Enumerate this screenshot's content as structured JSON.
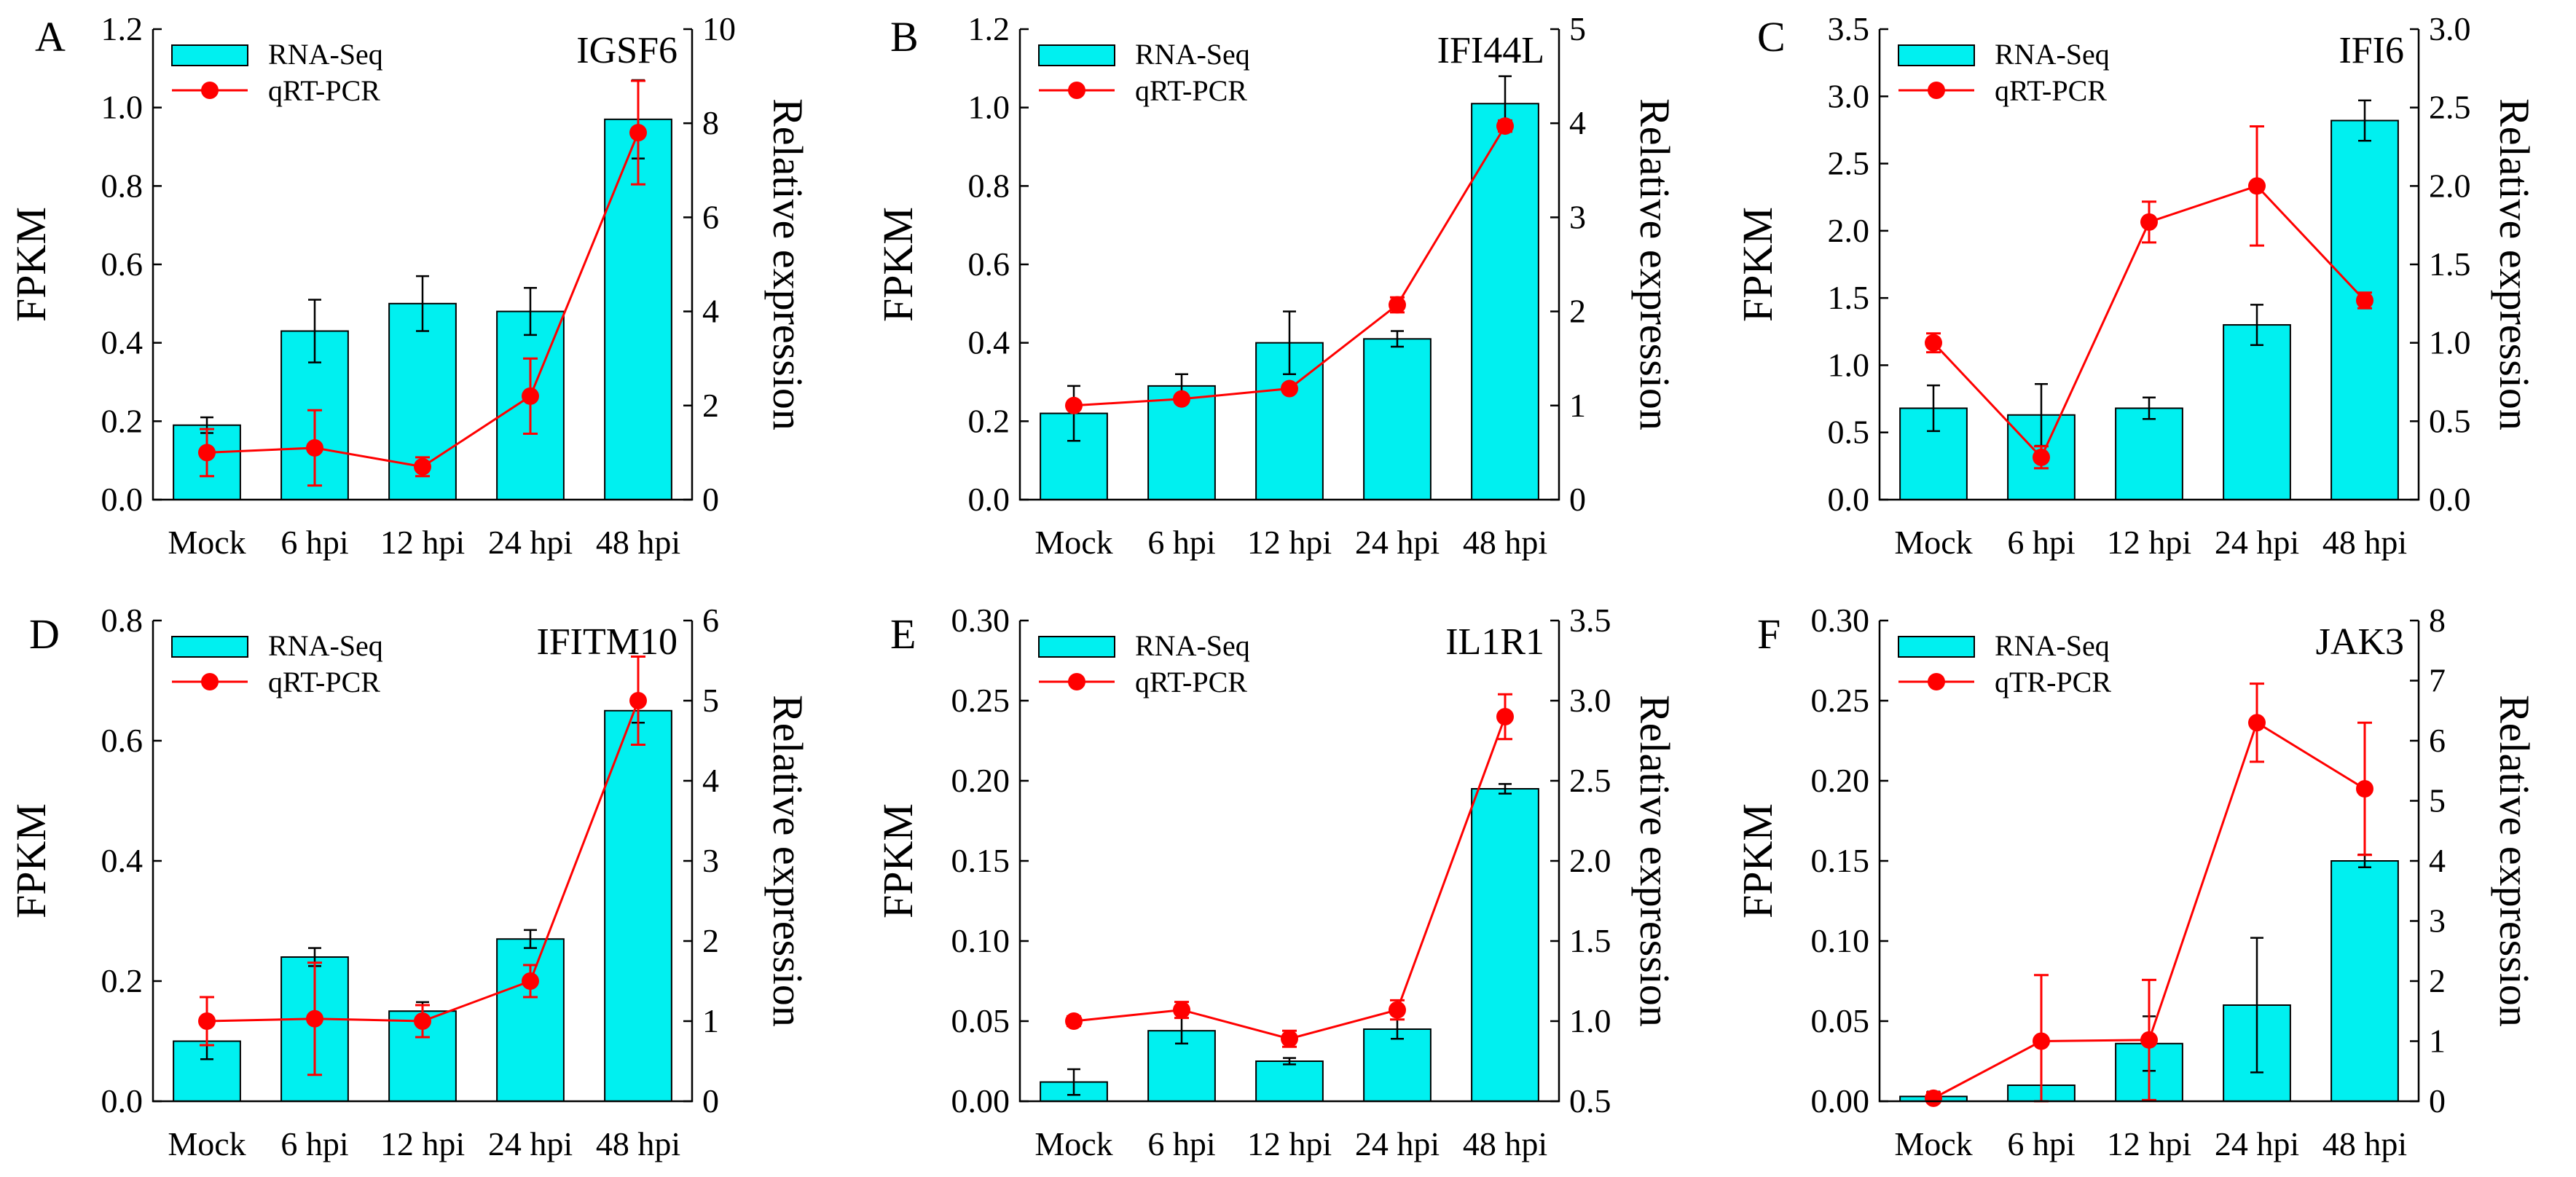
{
  "figure": {
    "panels": [
      {
        "letter": "A",
        "gene": "IGSF6"
      },
      {
        "letter": "B",
        "gene": "IFI44L"
      },
      {
        "letter": "C",
        "gene": "IFI6"
      },
      {
        "letter": "D",
        "gene": "IFITM10"
      },
      {
        "letter": "E",
        "gene": "IL1R1"
      },
      {
        "letter": "F",
        "gene": "JAK3"
      }
    ]
  },
  "chart_data": [
    {
      "type": "bar",
      "panel": "A",
      "title": "IGSF6",
      "categories": [
        "Mock",
        "6 hpi",
        "12 hpi",
        "24 hpi",
        "48 hpi"
      ],
      "xlabel": "",
      "ylabel": "FPKM",
      "y2label": "Relative expression",
      "ylim": [
        0,
        1.2
      ],
      "yticks": [
        0,
        0.2,
        0.4,
        0.6,
        0.8,
        1.0,
        1.2
      ],
      "yticklabels": [
        "0.0",
        "0.2",
        "0.4",
        "0.6",
        "0.8",
        "1.0",
        "1.2"
      ],
      "y2lim": [
        0,
        10
      ],
      "y2ticks": [
        0,
        2,
        4,
        6,
        8,
        10
      ],
      "y2ticklabels": [
        "0",
        "2",
        "4",
        "6",
        "8",
        "10"
      ],
      "legend": "top-left",
      "series": [
        {
          "name": "RNA-Seq",
          "type": "bar",
          "axis": "left",
          "color": "#00f0f0",
          "values": [
            0.19,
            0.43,
            0.5,
            0.48,
            0.97
          ],
          "errors": [
            0.02,
            0.08,
            0.07,
            0.06,
            0.1
          ]
        },
        {
          "name": "qRT-PCR",
          "type": "line",
          "axis": "right",
          "color": "#ff0000",
          "values": [
            1.0,
            1.1,
            0.7,
            2.2,
            7.8
          ],
          "errors": [
            0.5,
            0.8,
            0.2,
            0.8,
            1.1
          ]
        }
      ]
    },
    {
      "type": "bar",
      "panel": "B",
      "title": "IFI44L",
      "categories": [
        "Mock",
        "6 hpi",
        "12 hpi",
        "24 hpi",
        "48 hpi"
      ],
      "xlabel": "",
      "ylabel": "FPKM",
      "y2label": "Relative expression",
      "ylim": [
        0,
        1.2
      ],
      "yticks": [
        0,
        0.2,
        0.4,
        0.6,
        0.8,
        1.0,
        1.2
      ],
      "yticklabels": [
        "0.0",
        "0.2",
        "0.4",
        "0.6",
        "0.8",
        "1.0",
        "1.2"
      ],
      "y2lim": [
        0,
        5
      ],
      "y2ticks": [
        0,
        1,
        2,
        3,
        4,
        5
      ],
      "y2ticklabels": [
        "0",
        "1",
        "2",
        "3",
        "4",
        "5"
      ],
      "legend": "top-left",
      "series": [
        {
          "name": "RNA-Seq",
          "type": "bar",
          "axis": "left",
          "color": "#00f0f0",
          "values": [
            0.22,
            0.29,
            0.4,
            0.41,
            1.01
          ],
          "errors": [
            0.07,
            0.03,
            0.08,
            0.02,
            0.07
          ]
        },
        {
          "name": "qRT-PCR",
          "type": "line",
          "axis": "right",
          "color": "#ff0000",
          "values": [
            1.0,
            1.07,
            1.18,
            2.07,
            3.97
          ],
          "errors": [
            0.04,
            0.04,
            0.04,
            0.08,
            0.06
          ]
        }
      ]
    },
    {
      "type": "bar",
      "panel": "C",
      "title": "IFI6",
      "categories": [
        "Mock",
        "6 hpi",
        "12 hpi",
        "24 hpi",
        "48 hpi"
      ],
      "xlabel": "",
      "ylabel": "FPKM",
      "y2label": "Relative expression",
      "ylim": [
        0,
        3.5
      ],
      "yticks": [
        0,
        0.5,
        1.0,
        1.5,
        2.0,
        2.5,
        3.0,
        3.5
      ],
      "yticklabels": [
        "0.0",
        "0.5",
        "1.0",
        "1.5",
        "2.0",
        "2.5",
        "3.0",
        "3.5"
      ],
      "y2lim": [
        0,
        3.0
      ],
      "y2ticks": [
        0,
        0.5,
        1.0,
        1.5,
        2.0,
        2.5,
        3.0
      ],
      "y2ticklabels": [
        "0.0",
        "0.5",
        "1.0",
        "1.5",
        "2.0",
        "2.5",
        "3.0"
      ],
      "legend": "top-left",
      "series": [
        {
          "name": "RNA-Seq",
          "type": "bar",
          "axis": "left",
          "color": "#00f0f0",
          "values": [
            0.68,
            0.63,
            0.68,
            1.3,
            2.82
          ],
          "errors": [
            0.17,
            0.23,
            0.08,
            0.15,
            0.15
          ]
        },
        {
          "name": "qRT-PCR",
          "type": "line",
          "axis": "right",
          "color": "#ff0000",
          "values": [
            1.0,
            0.27,
            1.77,
            2.0,
            1.27
          ],
          "errors": [
            0.06,
            0.07,
            0.13,
            0.38,
            0.05
          ]
        }
      ]
    },
    {
      "type": "bar",
      "panel": "D",
      "title": "IFITM10",
      "categories": [
        "Mock",
        "6 hpi",
        "12 hpi",
        "24 hpi",
        "48 hpi"
      ],
      "xlabel": "",
      "ylabel": "FPKM",
      "y2label": "Relative expression",
      "ylim": [
        0,
        0.8
      ],
      "yticks": [
        0,
        0.2,
        0.4,
        0.6,
        0.8
      ],
      "yticklabels": [
        "0.0",
        "0.2",
        "0.4",
        "0.6",
        "0.8"
      ],
      "y2lim": [
        0,
        6
      ],
      "y2ticks": [
        0,
        1,
        2,
        3,
        4,
        5,
        6
      ],
      "y2ticklabels": [
        "0",
        "1",
        "2",
        "3",
        "4",
        "5",
        "6"
      ],
      "legend": "top-left",
      "series": [
        {
          "name": "RNA-Seq",
          "type": "bar",
          "axis": "left",
          "color": "#00f0f0",
          "values": [
            0.1,
            0.24,
            0.15,
            0.27,
            0.65
          ],
          "errors": [
            0.03,
            0.015,
            0.015,
            0.015,
            0.02
          ]
        },
        {
          "name": "qRT-PCR",
          "type": "line",
          "axis": "right",
          "color": "#ff0000",
          "values": [
            1.0,
            1.03,
            1.0,
            1.5,
            5.0
          ],
          "errors": [
            0.3,
            0.7,
            0.2,
            0.2,
            0.55
          ]
        }
      ]
    },
    {
      "type": "bar",
      "panel": "E",
      "title": "IL1R1",
      "categories": [
        "Mock",
        "6 hpi",
        "12 hpi",
        "24 hpi",
        "48 hpi"
      ],
      "xlabel": "",
      "ylabel": "FPKM",
      "y2label": "Relative expression",
      "ylim": [
        0,
        0.3
      ],
      "yticks": [
        0,
        0.05,
        0.1,
        0.15,
        0.2,
        0.25,
        0.3
      ],
      "yticklabels": [
        "0.00",
        "0.05",
        "0.10",
        "0.15",
        "0.20",
        "0.25",
        "0.30"
      ],
      "y2lim": [
        0.5,
        3.5
      ],
      "y2ticks": [
        0.5,
        1.0,
        1.5,
        2.0,
        2.5,
        3.0,
        3.5
      ],
      "y2ticklabels": [
        "0.5",
        "1.0",
        "1.5",
        "2.0",
        "2.5",
        "3.0",
        "3.5"
      ],
      "legend": "top-left",
      "series": [
        {
          "name": "RNA-Seq",
          "type": "bar",
          "axis": "left",
          "color": "#00f0f0",
          "values": [
            0.012,
            0.044,
            0.025,
            0.045,
            0.195
          ],
          "errors": [
            0.008,
            0.008,
            0.002,
            0.006,
            0.003
          ]
        },
        {
          "name": "qRT-PCR",
          "type": "line",
          "axis": "right",
          "color": "#ff0000",
          "values": [
            1.0,
            1.07,
            0.89,
            1.07,
            2.9
          ],
          "errors": [
            0.03,
            0.05,
            0.05,
            0.06,
            0.14
          ]
        }
      ]
    },
    {
      "type": "bar",
      "panel": "F",
      "title": "JAK3",
      "categories": [
        "Mock",
        "6 hpi",
        "12 hpi",
        "24 hpi",
        "48 hpi"
      ],
      "xlabel": "",
      "ylabel": "FPKM",
      "y2label": "Relative expression",
      "ylim": [
        0,
        0.3
      ],
      "yticks": [
        0,
        0.05,
        0.1,
        0.15,
        0.2,
        0.25,
        0.3
      ],
      "yticklabels": [
        "0.00",
        "0.05",
        "0.10",
        "0.15",
        "0.20",
        "0.25",
        "0.30"
      ],
      "y2lim": [
        0,
        8
      ],
      "y2ticks": [
        0,
        1,
        2,
        3,
        4,
        5,
        6,
        7,
        8
      ],
      "y2ticklabels": [
        "0",
        "1",
        "2",
        "3",
        "4",
        "5",
        "6",
        "7",
        "8"
      ],
      "legend": "top-left",
      "series": [
        {
          "name": "RNA-Seq",
          "type": "bar",
          "axis": "left",
          "color": "#00f0f0",
          "values": [
            0.003,
            0.01,
            0.036,
            0.06,
            0.15
          ],
          "errors": [
            0.003,
            0.0,
            0.017,
            0.042,
            0.004
          ]
        },
        {
          "name": "qTR-PCR",
          "type": "line",
          "axis": "right",
          "color": "#ff0000",
          "values": [
            0.05,
            1.0,
            1.02,
            6.3,
            5.2
          ],
          "errors": [
            0.1,
            1.1,
            1.0,
            0.65,
            1.1
          ]
        }
      ]
    }
  ]
}
